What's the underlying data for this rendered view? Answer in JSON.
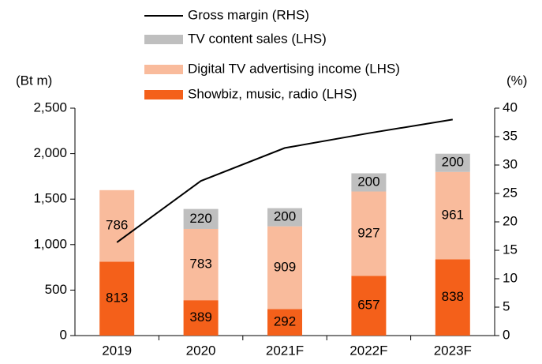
{
  "chart_data": {
    "type": "bar",
    "categories": [
      "2019",
      "2020",
      "2021F",
      "2022F",
      "2023F"
    ],
    "series": [
      {
        "name": "Showbiz, music, radio (LHS)",
        "color": "#f4601a",
        "values": [
          813,
          389,
          292,
          657,
          838
        ]
      },
      {
        "name": "Digital TV advertising income (LHS)",
        "color": "#f9bb9c",
        "values": [
          786,
          783,
          909,
          927,
          961
        ]
      },
      {
        "name": "TV content sales (LHS)",
        "color": "#bfbfbf",
        "values": [
          null,
          220,
          200,
          200,
          200
        ]
      },
      {
        "name": "Gross margin (RHS)",
        "color": "#000000",
        "type": "line",
        "axis": "y2",
        "values": [
          16.4,
          27.2,
          33,
          35.6,
          38
        ]
      }
    ],
    "ylabel": "(Bt m)",
    "y2label": "(%)",
    "ylim": [
      0,
      2500
    ],
    "yticks": [
      0,
      500,
      {
        "value": 1000,
        "label": "1,000"
      },
      {
        "value": 1500,
        "label": "1,500"
      },
      {
        "value": 2000,
        "label": "2,000"
      },
      {
        "value": 2500,
        "label": "2,500"
      }
    ],
    "y2lim": [
      0,
      40
    ],
    "y2ticks": [
      0,
      5,
      10,
      15,
      20,
      25,
      30,
      35,
      40
    ],
    "grid": false
  }
}
